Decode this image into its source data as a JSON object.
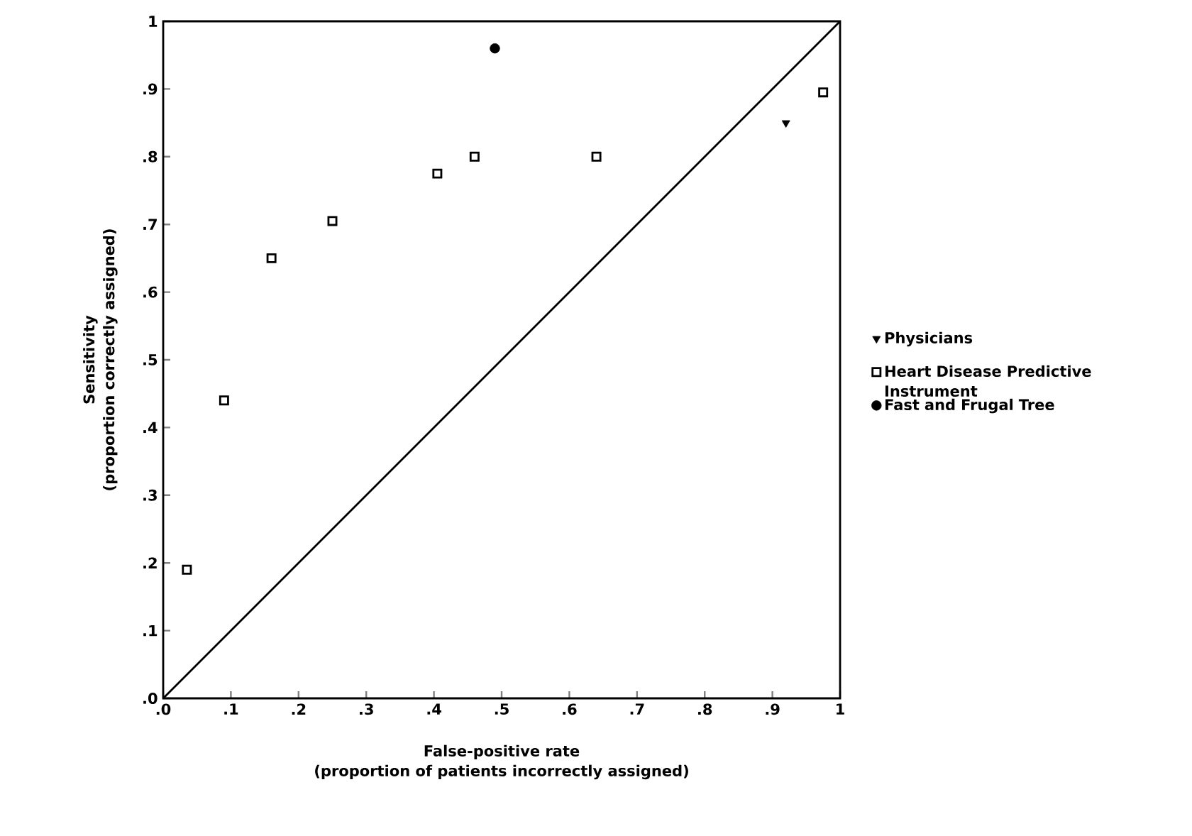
{
  "chart_data": {
    "type": "scatter",
    "xlabel": "False-positive rate\n(proportion of patients incorrectly assigned)",
    "ylabel": "Sensitivity\n(proportion correctly assigned)",
    "xlim": [
      0,
      1
    ],
    "ylim": [
      0,
      1
    ],
    "xticks": [
      {
        "value": 0,
        "label": ".0"
      },
      {
        "value": 0.1,
        "label": ".1"
      },
      {
        "value": 0.2,
        "label": ".2"
      },
      {
        "value": 0.3,
        "label": ".3"
      },
      {
        "value": 0.4,
        "label": ".4"
      },
      {
        "value": 0.5,
        "label": ".5"
      },
      {
        "value": 0.6,
        "label": ".6"
      },
      {
        "value": 0.7,
        "label": ".7"
      },
      {
        "value": 0.8,
        "label": ".8"
      },
      {
        "value": 0.9,
        "label": ".9"
      },
      1
    ],
    "yticks": [
      {
        "value": 0,
        "label": ".0"
      },
      {
        "value": 0.1,
        "label": ".1"
      },
      {
        "value": 0.2,
        "label": ".2"
      },
      {
        "value": 0.3,
        "label": ".3"
      },
      {
        "value": 0.4,
        "label": ".4"
      },
      {
        "value": 0.5,
        "label": ".5"
      },
      {
        "value": 0.6,
        "label": ".6"
      },
      {
        "value": 0.7,
        "label": ".7"
      },
      {
        "value": 0.8,
        "label": ".8"
      },
      {
        "value": 0.9,
        "label": ".9"
      },
      1
    ],
    "grid": false,
    "legend": "right",
    "series": [
      {
        "type": "line",
        "color": "#000000",
        "marker": "none",
        "x": [
          0,
          1
        ],
        "values": [
          0,
          1
        ]
      },
      {
        "name": "Physicians",
        "color": "#000000",
        "marker": "triangle",
        "x": [
          0.92
        ],
        "values": [
          0.85
        ]
      },
      {
        "name": "Heart Disease Predictive Instrument",
        "color": "#000000",
        "marker": "square",
        "x": [
          0.035,
          0.09,
          0.16,
          0.25,
          0.405,
          0.46,
          0.64,
          0.975
        ],
        "values": [
          0.19,
          0.44,
          0.65,
          0.705,
          0.775,
          0.8,
          0.8,
          0.895
        ]
      },
      {
        "name": "Fast and Frugal Tree",
        "color": "#000000",
        "marker": "circle",
        "x": [
          0.49
        ],
        "values": [
          0.96
        ]
      }
    ]
  }
}
